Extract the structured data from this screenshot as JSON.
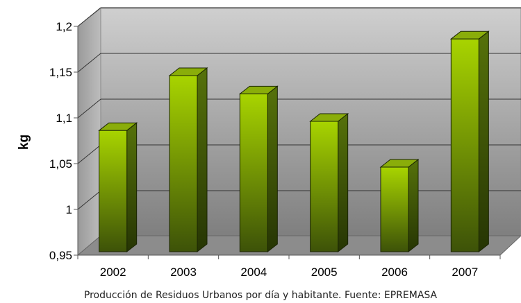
{
  "chart_data": {
    "type": "bar",
    "categories": [
      "2002",
      "2003",
      "2004",
      "2005",
      "2006",
      "2007"
    ],
    "values": [
      1.09,
      1.15,
      1.13,
      1.1,
      1.05,
      1.19
    ],
    "ylabel": "kg",
    "xlabel": "",
    "ylim": [
      0.95,
      1.2
    ],
    "y_ticks": [
      "0,95",
      "1",
      "1,05",
      "1,1",
      "1,15",
      "1,2"
    ],
    "grid": true,
    "style": "3d",
    "colors": {
      "bar_front_top": "#a8d400",
      "bar_front_bottom": "#3d5208",
      "bar_side": "#2e4005",
      "bar_top": "#8aad0a",
      "wall_top": "#c8c8c8",
      "wall_bottom": "#7a7a7a"
    }
  },
  "caption": "Producción de Residuos Urbanos por día y habitante. Fuente: EPREMASA"
}
